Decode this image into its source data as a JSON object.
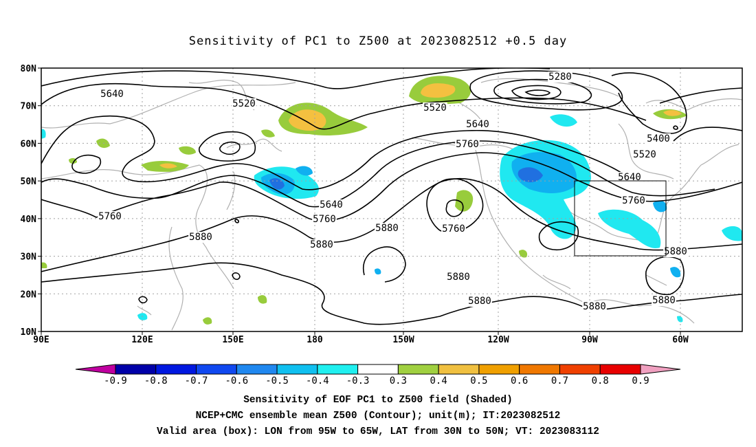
{
  "title": "Sensitivity of PC1 to Z500 at 2023082512 +0.5 day",
  "lat_labels": [
    "80N",
    "70N",
    "60N",
    "50N",
    "40N",
    "30N",
    "20N",
    "10N"
  ],
  "lon_labels": [
    "90E",
    "120E",
    "150E",
    "180",
    "150W",
    "120W",
    "90W",
    "60W"
  ],
  "contour_labels": [
    "5280",
    "5400",
    "5520",
    "5520",
    "5520",
    "5640",
    "5640",
    "5640",
    "5640",
    "5760",
    "5760",
    "5760",
    "5760",
    "5760",
    "5880",
    "5880",
    "5880",
    "5880",
    "5880",
    "5880",
    "5880",
    "5880"
  ],
  "colorbar": {
    "labels": [
      "-0.9",
      "-0.8",
      "-0.7",
      "-0.6",
      "-0.5",
      "-0.4",
      "-0.3",
      "0.3",
      "0.4",
      "0.5",
      "0.6",
      "0.7",
      "0.8",
      "0.9"
    ],
    "colors": [
      "#c000a0",
      "#0000a8",
      "#0018e0",
      "#1048f0",
      "#2088f0",
      "#10c0f0",
      "#20f0f0",
      "#ffffff",
      "#a0d040",
      "#f0c040",
      "#f0a000",
      "#f07800",
      "#f04000",
      "#e80000",
      "#f0a0c0"
    ]
  },
  "shading": {
    "positive_color": "#98cc3c",
    "strong_positive_color": "#f4c040",
    "negative_color": "#20e8f0",
    "strong_negative_color": "#10b0f0",
    "peak_negative_color": "#2070e0"
  },
  "valid_box": {
    "lon_range": "95W-65W",
    "lat_range": "30N-50N"
  },
  "captions": [
    "Sensitivity of EOF PC1 to Z500 field (Shaded)",
    "NCEP+CMC ensemble mean Z500 (Contour); unit(m); IT:2023082512",
    "Valid area (box): LON from 95W to 65W, LAT from 30N to 50N; VT: 2023083112"
  ]
}
